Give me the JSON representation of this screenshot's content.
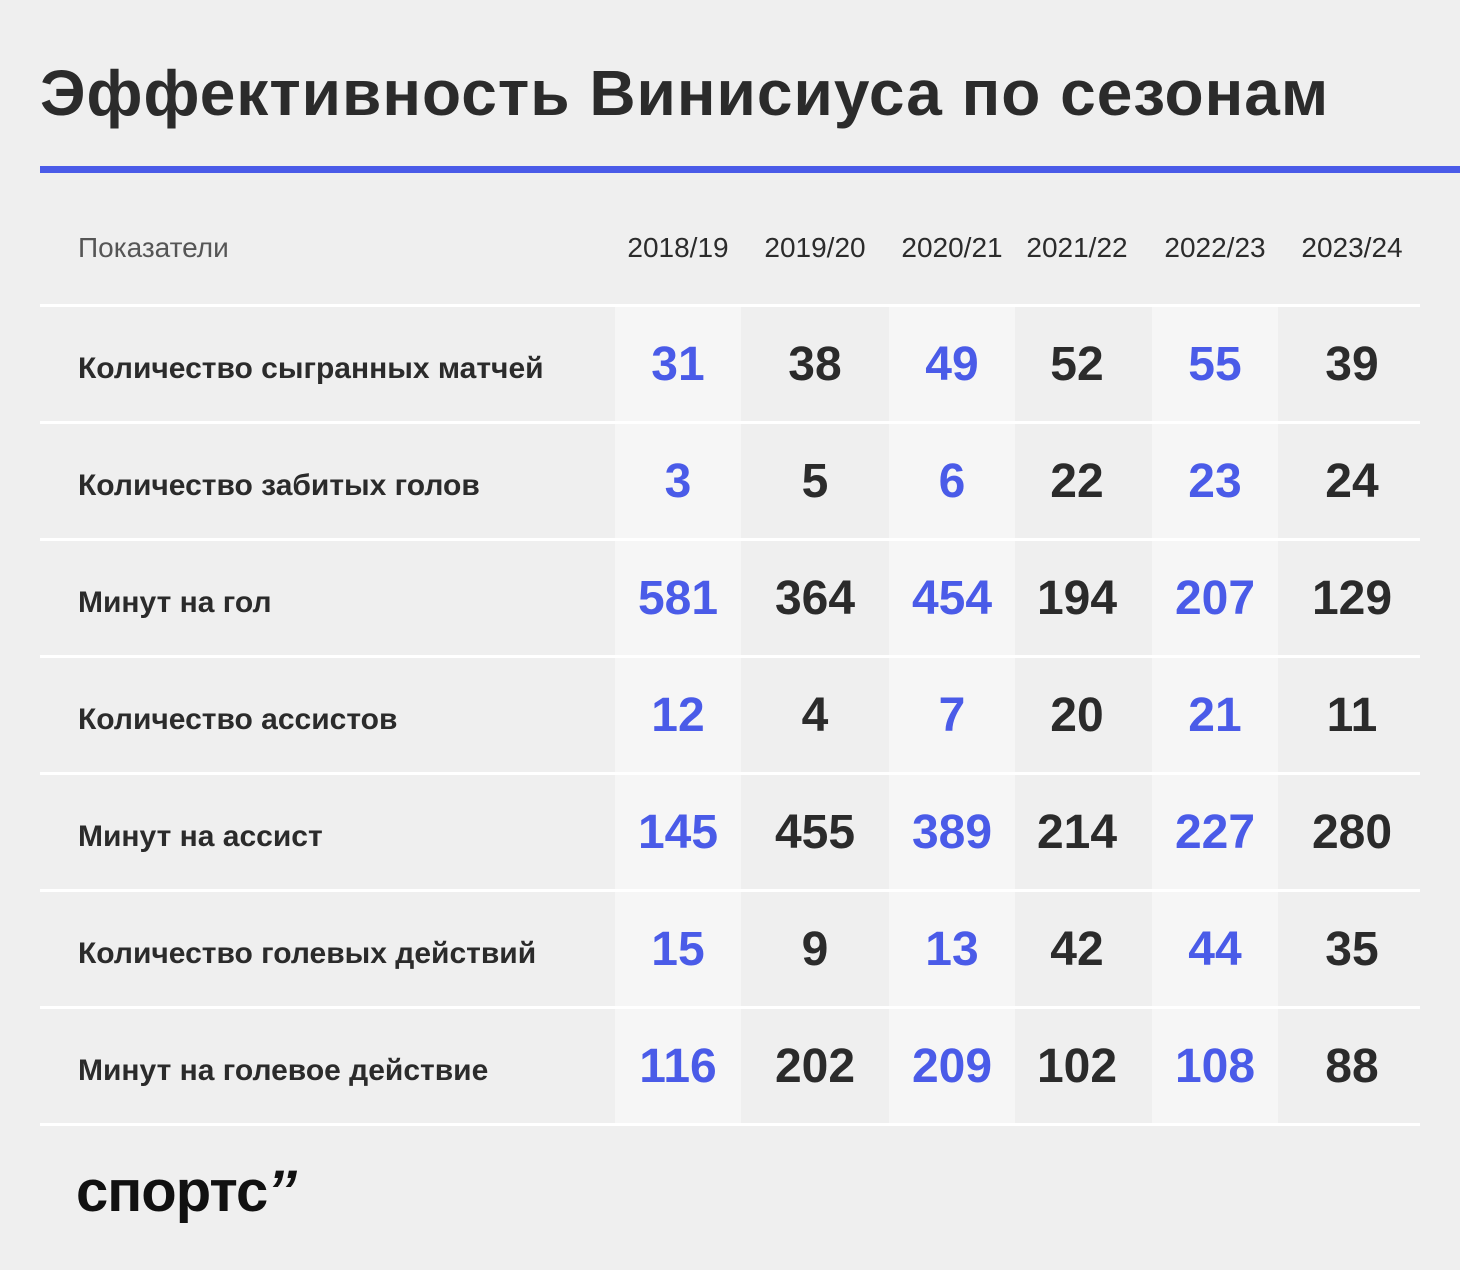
{
  "title": "Эффективность Винисиуса по сезонам",
  "logo": {
    "text": "спортс",
    "mark": "’’"
  },
  "chart_data": {
    "type": "table",
    "header_label": "Показатели",
    "columns": [
      "2018/19",
      "2019/20",
      "2020/21",
      "2021/22",
      "2022/23",
      "2023/24"
    ],
    "rows": [
      {
        "label": "Количество сыгранных матчей",
        "values": [
          "31",
          "38",
          "49",
          "52",
          "55",
          "39"
        ]
      },
      {
        "label": "Количество забитых голов",
        "values": [
          "3",
          "5",
          "6",
          "22",
          "23",
          "24"
        ]
      },
      {
        "label": "Минут на гол",
        "values": [
          "581",
          "364",
          "454",
          "194",
          "207",
          "129"
        ]
      },
      {
        "label": "Количество ассистов",
        "values": [
          "12",
          "4",
          "7",
          "20",
          "21",
          "11"
        ]
      },
      {
        "label": "Минут на ассист",
        "values": [
          "145",
          "455",
          "389",
          "214",
          "227",
          "280"
        ]
      },
      {
        "label": "Количество голевых действий",
        "values": [
          "15",
          "9",
          "13",
          "42",
          "44",
          "35"
        ]
      },
      {
        "label": "Минут на голевое действие",
        "values": [
          "116",
          "202",
          "209",
          "102",
          "108",
          "88"
        ]
      }
    ],
    "highlight_columns": [
      "2018/19",
      "2020/21",
      "2022/23"
    ],
    "colors": {
      "highlight": "#4a5be8",
      "text": "#2b2b2b",
      "background": "#efefef"
    }
  }
}
